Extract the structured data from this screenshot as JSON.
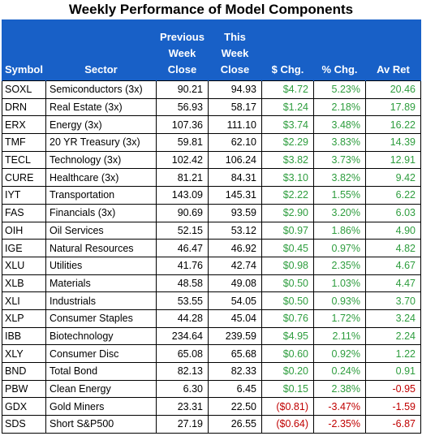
{
  "title": "Weekly Performance of Model Components",
  "headers": {
    "symbol": "Symbol",
    "sector": "Sector",
    "prev": [
      "Previous",
      "Week",
      "Close"
    ],
    "this": [
      "This",
      "Week",
      "Close"
    ],
    "dchg": "$ Chg.",
    "pchg": "% Chg.",
    "avret": "Av Ret"
  },
  "colors": {
    "header_bg": "#1860c7",
    "positive": "#2e9d3e",
    "negative": "#c00000"
  },
  "rows": [
    {
      "symbol": "SOXL",
      "sector": "Semiconductors (3x)",
      "prev": "90.21",
      "cur": "94.93",
      "dchg": "$4.72",
      "pchg": "5.23%",
      "avret": "20.46",
      "neg": false
    },
    {
      "symbol": "DRN",
      "sector": "Real Estate (3x)",
      "prev": "56.93",
      "cur": "58.17",
      "dchg": "$1.24",
      "pchg": "2.18%",
      "avret": "17.89",
      "neg": false
    },
    {
      "symbol": "ERX",
      "sector": "Energy (3x)",
      "prev": "107.36",
      "cur": "111.10",
      "dchg": "$3.74",
      "pchg": "3.48%",
      "avret": "16.22",
      "neg": false
    },
    {
      "symbol": "TMF",
      "sector": "20 YR Treasury (3x)",
      "prev": "59.81",
      "cur": "62.10",
      "dchg": "$2.29",
      "pchg": "3.83%",
      "avret": "14.39",
      "neg": false
    },
    {
      "symbol": "TECL",
      "sector": "Technology (3x)",
      "prev": "102.42",
      "cur": "106.24",
      "dchg": "$3.82",
      "pchg": "3.73%",
      "avret": "12.91",
      "neg": false
    },
    {
      "symbol": "CURE",
      "sector": "Healthcare (3x)",
      "prev": "81.21",
      "cur": "84.31",
      "dchg": "$3.10",
      "pchg": "3.82%",
      "avret": "9.42",
      "neg": false
    },
    {
      "symbol": "IYT",
      "sector": "Transportation",
      "prev": "143.09",
      "cur": "145.31",
      "dchg": "$2.22",
      "pchg": "1.55%",
      "avret": "6.22",
      "neg": false
    },
    {
      "symbol": "FAS",
      "sector": "Financials (3x)",
      "prev": "90.69",
      "cur": "93.59",
      "dchg": "$2.90",
      "pchg": "3.20%",
      "avret": "6.03",
      "neg": false
    },
    {
      "symbol": "OIH",
      "sector": "Oil Services",
      "prev": "52.15",
      "cur": "53.12",
      "dchg": "$0.97",
      "pchg": "1.86%",
      "avret": "4.90",
      "neg": false
    },
    {
      "symbol": "IGE",
      "sector": "Natural Resources",
      "prev": "46.47",
      "cur": "46.92",
      "dchg": "$0.45",
      "pchg": "0.97%",
      "avret": "4.82",
      "neg": false
    },
    {
      "symbol": "XLU",
      "sector": "Utilities",
      "prev": "41.76",
      "cur": "42.74",
      "dchg": "$0.98",
      "pchg": "2.35%",
      "avret": "4.67",
      "neg": false
    },
    {
      "symbol": "XLB",
      "sector": "Materials",
      "prev": "48.58",
      "cur": "49.08",
      "dchg": "$0.50",
      "pchg": "1.03%",
      "avret": "4.47",
      "neg": false
    },
    {
      "symbol": "XLI",
      "sector": "Industrials",
      "prev": "53.55",
      "cur": "54.05",
      "dchg": "$0.50",
      "pchg": "0.93%",
      "avret": "3.70",
      "neg": false
    },
    {
      "symbol": "XLP",
      "sector": "Consumer Staples",
      "prev": "44.28",
      "cur": "45.04",
      "dchg": "$0.76",
      "pchg": "1.72%",
      "avret": "3.24",
      "neg": false
    },
    {
      "symbol": "IBB",
      "sector": "Biotechnology",
      "prev": "234.64",
      "cur": "239.59",
      "dchg": "$4.95",
      "pchg": "2.11%",
      "avret": "2.24",
      "neg": false
    },
    {
      "symbol": "XLY",
      "sector": "Consumer Disc",
      "prev": "65.08",
      "cur": "65.68",
      "dchg": "$0.60",
      "pchg": "0.92%",
      "avret": "1.22",
      "neg": false
    },
    {
      "symbol": "BND",
      "sector": "Total Bond",
      "prev": "82.13",
      "cur": "82.33",
      "dchg": "$0.20",
      "pchg": "0.24%",
      "avret": "0.91",
      "neg": false
    },
    {
      "symbol": "PBW",
      "sector": "Clean Energy",
      "prev": "6.30",
      "cur": "6.45",
      "dchg": "$0.15",
      "pchg": "2.38%",
      "avret": "-0.95",
      "neg": false,
      "avret_neg": true
    },
    {
      "symbol": "GDX",
      "sector": "Gold Miners",
      "prev": "23.31",
      "cur": "22.50",
      "dchg": "($0.81)",
      "pchg": "-3.47%",
      "avret": "-1.59",
      "neg": true
    },
    {
      "symbol": "SDS",
      "sector": "Short S&P500",
      "prev": "27.19",
      "cur": "26.55",
      "dchg": "($0.64)",
      "pchg": "-2.35%",
      "avret": "-6.87",
      "neg": true
    }
  ]
}
